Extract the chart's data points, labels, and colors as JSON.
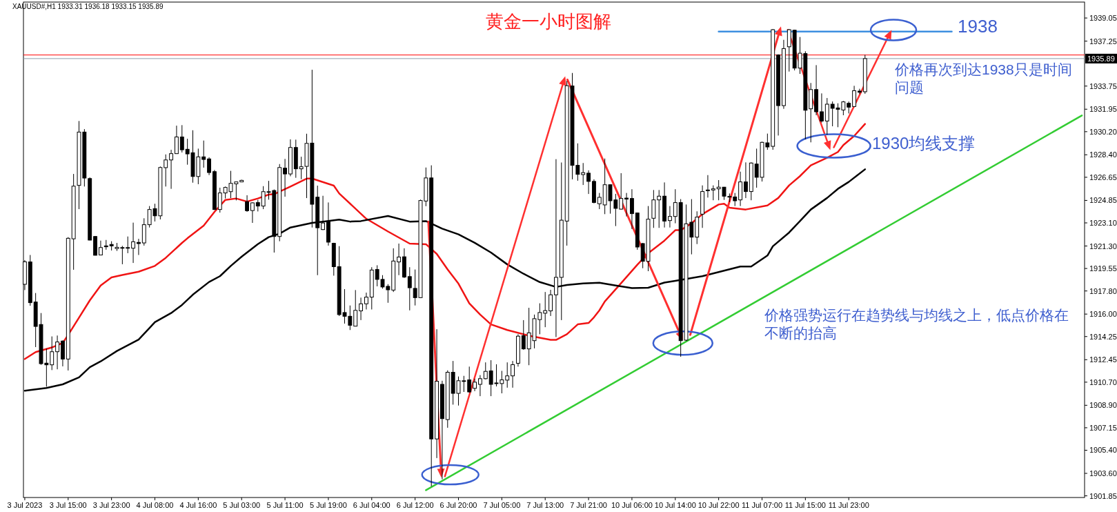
{
  "chart_data": {
    "type": "candlestick",
    "title": "黄金一小时图解",
    "subtitle": "XAUUSD#,H1 1933.31 1936.18 1933.15 1935.89",
    "annotations": [
      "1938",
      "价格再次到达1938只是时间问题",
      "1930均线支撑",
      "价格强势运行在趋势线与均线之上，低点价格在不断的抬高"
    ],
    "categories": [
      "3 Jul 2023",
      null,
      null,
      null,
      null,
      null,
      null,
      null,
      "3 Jul 15:00",
      null,
      null,
      null,
      null,
      null,
      null,
      null,
      "3 Jul 23:00",
      null,
      null,
      null,
      null,
      null,
      null,
      null,
      "4 Jul 08:00",
      null,
      null,
      null,
      null,
      null,
      null,
      null,
      "4 Jul 16:00",
      null,
      null,
      null,
      null,
      null,
      null,
      null,
      "5 Jul 03:00",
      null,
      null,
      null,
      null,
      null,
      null,
      null,
      "5 Jul 11:00",
      null,
      null,
      null,
      null,
      null,
      null,
      null,
      "5 Jul 19:00",
      null,
      null,
      null,
      null,
      null,
      null,
      null,
      "6 Jul 04:00",
      null,
      null,
      null,
      null,
      null,
      null,
      null,
      "6 Jul 12:00",
      null,
      null,
      null,
      null,
      null,
      null,
      null,
      "6 Jul 20:00",
      null,
      null,
      null,
      null,
      null,
      null,
      null,
      "7 Jul 05:00",
      null,
      null,
      null,
      null,
      null,
      null,
      null,
      "7 Jul 13:00",
      null,
      null,
      null,
      null,
      null,
      null,
      null,
      "7 Jul 21:00",
      null,
      null,
      null,
      null,
      null,
      null,
      null,
      "10 Jul 06:00",
      null,
      null,
      null,
      null,
      null,
      null,
      null,
      "10 Jul 14:00",
      null,
      null,
      null,
      null,
      null,
      null,
      null,
      "10 Jul 22:00",
      null,
      null,
      null,
      null,
      null,
      null,
      null,
      "11 Jul 07:00",
      null,
      null,
      null,
      null,
      null,
      null,
      null,
      "11 Jul 15:00",
      null,
      null,
      null,
      null,
      null,
      null,
      null,
      "11 Jul 23:00",
      null,
      null,
      null,
      null,
      null,
      null,
      null,
      null,
      null,
      null,
      null,
      null,
      null,
      null,
      null,
      null,
      null,
      null,
      null,
      null,
      null,
      null,
      null,
      null,
      null,
      null,
      null,
      null,
      null,
      null,
      null,
      null,
      null,
      null,
      null,
      null,
      null,
      null,
      null,
      null,
      null,
      null,
      null
    ],
    "ohlc": [
      [
        1918.32,
        1920.2,
        1917.87,
        1920.07
      ],
      [
        1920.06,
        1920.6,
        1916.65,
        1916.89
      ],
      [
        1916.94,
        1917.64,
        1913.43,
        1915.04
      ],
      [
        1915.19,
        1916.08,
        1912.05,
        1912.14
      ],
      [
        1912.18,
        1913.31,
        1910.35,
        1912.05
      ],
      [
        1912.05,
        1914.26,
        1911.64,
        1913.07
      ],
      [
        1913.07,
        1914.33,
        1911.7,
        1913.83
      ],
      [
        1913.9,
        1913.95,
        1911.93,
        1912.5
      ],
      [
        1912.5,
        1921.99,
        1911.61,
        1921.9
      ],
      [
        1921.86,
        1926.91,
        1919.45,
        1925.96
      ],
      [
        1926.02,
        1931.03,
        1924.17,
        1930.17
      ],
      [
        1930.17,
        1930.4,
        1925.93,
        1926.59
      ],
      [
        1926.55,
        1926.64,
        1921.74,
        1921.76
      ],
      [
        1922.04,
        1922.08,
        1920.56,
        1920.58
      ],
      [
        1920.6,
        1921.72,
        1920.58,
        1921.18
      ],
      [
        1921.31,
        1921.77,
        1921.01,
        1921.24
      ],
      [
        1921.42,
        1921.67,
        1920.95,
        1921.31
      ],
      [
        1921.1,
        1921.54,
        1920.92,
        1921.2
      ],
      [
        1921.17,
        1921.31,
        1919.88,
        1921.18
      ],
      [
        1921.15,
        1922.04,
        1920.74,
        1921.18
      ],
      [
        1921.13,
        1923.12,
        1919.98,
        1921.63
      ],
      [
        1921.58,
        1921.86,
        1920.6,
        1921.49
      ],
      [
        1921.54,
        1923.46,
        1921.33,
        1922.96
      ],
      [
        1922.96,
        1924.41,
        1922.74,
        1924.14
      ],
      [
        1924.21,
        1924.59,
        1923.21,
        1923.65
      ],
      [
        1923.65,
        1927.49,
        1923.37,
        1927.41
      ],
      [
        1927.4,
        1928.43,
        1925.93,
        1928.0
      ],
      [
        1928.0,
        1928.79,
        1925.75,
        1928.49
      ],
      [
        1928.49,
        1930.67,
        1928.47,
        1929.79
      ],
      [
        1929.79,
        1930.71,
        1928.58,
        1928.79
      ],
      [
        1928.83,
        1929.65,
        1927.63,
        1928.47
      ],
      [
        1928.56,
        1930.31,
        1926.23,
        1926.71
      ],
      [
        1926.71,
        1928.88,
        1926.11,
        1928.24
      ],
      [
        1928.24,
        1929.51,
        1927.4,
        1928.04
      ],
      [
        1928.08,
        1928.2,
        1926.82,
        1927.02
      ],
      [
        1927.09,
        1927.22,
        1924.1,
        1924.14
      ],
      [
        1924.14,
        1925.84,
        1923.9,
        1925.43
      ],
      [
        1925.43,
        1925.93,
        1925.0,
        1925.86
      ],
      [
        1925.53,
        1927.15,
        1925.03,
        1926.18
      ],
      [
        1926.14,
        1926.32,
        1924.85,
        1926.29
      ],
      [
        1926.29,
        1926.46,
        1926.28,
        1926.41
      ],
      [
        1924.75,
        1925.25,
        1923.96,
        1924.05
      ],
      [
        1924.06,
        1924.7,
        1923.1,
        1924.66
      ],
      [
        1924.68,
        1924.89,
        1923.99,
        1924.41
      ],
      [
        1924.41,
        1925.96,
        1924.17,
        1925.53
      ],
      [
        1925.5,
        1926.37,
        1924.91,
        1925.53
      ],
      [
        1925.62,
        1925.7,
        1920.79,
        1922.04
      ],
      [
        1922.04,
        1927.68,
        1921.67,
        1927.41
      ],
      [
        1927.36,
        1928.08,
        1925.14,
        1926.91
      ],
      [
        1926.91,
        1929.6,
        1926.73,
        1928.97
      ],
      [
        1928.97,
        1929.58,
        1926.61,
        1927.31
      ],
      [
        1927.31,
        1928.25,
        1926.5,
        1927.47
      ],
      [
        1927.5,
        1930.04,
        1925.03,
        1929.29
      ],
      [
        1929.31,
        1935.02,
        1922.74,
        1924.55
      ],
      [
        1925.1,
        1926.0,
        1919.03,
        1922.72
      ],
      [
        1922.58,
        1925.21,
        1922.54,
        1923.09
      ],
      [
        1923.2,
        1924.69,
        1921.33,
        1921.6
      ],
      [
        1921.51,
        1921.55,
        1918.99,
        1919.69
      ],
      [
        1919.69,
        1921.29,
        1915.85,
        1915.96
      ],
      [
        1916.12,
        1917.94,
        1915.26,
        1915.83
      ],
      [
        1915.83,
        1916.67,
        1914.76,
        1915.13
      ],
      [
        1915.06,
        1917.87,
        1915.04,
        1916.29
      ],
      [
        1916.25,
        1917.28,
        1915.53,
        1916.8
      ],
      [
        1916.8,
        1917.67,
        1916.36,
        1917.32
      ],
      [
        1917.32,
        1919.65,
        1916.36,
        1919.43
      ],
      [
        1919.47,
        1919.8,
        1918.16,
        1918.7
      ],
      [
        1918.7,
        1919.03,
        1917.98,
        1918.11
      ],
      [
        1918.16,
        1918.33,
        1916.88,
        1917.89
      ],
      [
        1917.87,
        1921.12,
        1917.72,
        1920.13
      ],
      [
        1920.06,
        1921.49,
        1919.03,
        1920.44
      ],
      [
        1920.46,
        1921.12,
        1918.81,
        1918.88
      ],
      [
        1918.92,
        1919.65,
        1916.29,
        1918.05
      ],
      [
        1918.0,
        1919.47,
        1916.67,
        1917.28
      ],
      [
        1917.28,
        1924.91,
        1917.25,
        1924.84
      ],
      [
        1924.8,
        1927.41,
        1924.4,
        1926.6
      ],
      [
        1926.6,
        1927.58,
        1902.59,
        1906.28
      ],
      [
        1906.28,
        1914.82,
        1904.79,
        1910.77
      ],
      [
        1910.53,
        1910.81,
        1903.14,
        1907.86
      ],
      [
        1907.79,
        1911.62,
        1907.15,
        1911.47
      ],
      [
        1911.47,
        1912.35,
        1908.95,
        1909.83
      ],
      [
        1909.83,
        1911.14,
        1908.88,
        1910.81
      ],
      [
        1910.77,
        1911.19,
        1909.94,
        1910.81
      ],
      [
        1910.88,
        1911.91,
        1909.87,
        1909.94
      ],
      [
        1910.22,
        1910.97,
        1910.0,
        1910.7
      ],
      [
        1910.53,
        1911.25,
        1909.61,
        1910.97
      ],
      [
        1910.97,
        1912.24,
        1910.92,
        1911.54
      ],
      [
        1911.58,
        1912.41,
        1909.61,
        1910.53
      ],
      [
        1910.59,
        1912.09,
        1910.37,
        1910.64
      ],
      [
        1910.59,
        1911.58,
        1909.83,
        1910.88
      ],
      [
        1910.86,
        1912.24,
        1910.27,
        1911.19
      ],
      [
        1911.19,
        1912.35,
        1910.27,
        1912.06
      ],
      [
        1912.17,
        1914.43,
        1911.91,
        1914.28
      ],
      [
        1914.32,
        1915.53,
        1913.22,
        1913.29
      ],
      [
        1913.29,
        1916.49,
        1912.02,
        1914.54
      ],
      [
        1913.93,
        1915.96,
        1913.33,
        1915.64
      ],
      [
        1915.57,
        1916.84,
        1914.43,
        1916.12
      ],
      [
        1916.07,
        1917.72,
        1914.98,
        1916.27
      ],
      [
        1916.25,
        1917.89,
        1915.85,
        1917.5
      ],
      [
        1917.5,
        1928.06,
        1914.21,
        1918.86
      ],
      [
        1918.86,
        1927.8,
        1915.53,
        1923.31
      ],
      [
        1923.24,
        1934.16,
        1921.33,
        1933.78
      ],
      [
        1933.76,
        1934.77,
        1926.49,
        1927.58
      ],
      [
        1927.58,
        1929.29,
        1926.38,
        1926.88
      ],
      [
        1926.86,
        1927.76,
        1926.05,
        1927.01
      ],
      [
        1926.97,
        1927.19,
        1925.35,
        1926.33
      ],
      [
        1926.33,
        1926.49,
        1924.62,
        1924.69
      ],
      [
        1924.59,
        1925.43,
        1924.17,
        1925.09
      ],
      [
        1924.5,
        1928.11,
        1923.78,
        1926.07
      ],
      [
        1926.07,
        1926.1,
        1923.82,
        1924.82
      ],
      [
        1924.89,
        1925.36,
        1922.85,
        1924.23
      ],
      [
        1924.17,
        1926.97,
        1924.14,
        1925.0
      ],
      [
        1925.03,
        1925.43,
        1923.6,
        1924.95
      ],
      [
        1925.0,
        1925.72,
        1922.62,
        1923.82
      ],
      [
        1923.87,
        1923.9,
        1921.01,
        1921.22
      ],
      [
        1921.49,
        1921.54,
        1919.57,
        1920.11
      ],
      [
        1920.11,
        1924.41,
        1919.34,
        1923.39
      ],
      [
        1923.46,
        1925.66,
        1922.71,
        1924.89
      ],
      [
        1924.89,
        1925.66,
        1922.71,
        1925.18
      ],
      [
        1925.18,
        1926.25,
        1922.74,
        1923.24
      ],
      [
        1923.28,
        1924.41,
        1922.74,
        1923.6
      ],
      [
        1923.6,
        1925.72,
        1923.07,
        1924.68
      ],
      [
        1924.68,
        1924.95,
        1912.68,
        1913.93
      ],
      [
        1913.97,
        1924.53,
        1913.9,
        1923.03
      ],
      [
        1923.15,
        1924.95,
        1920.65,
        1921.99
      ],
      [
        1921.99,
        1924.0,
        1921.45,
        1923.55
      ],
      [
        1923.78,
        1926.02,
        1922.71,
        1925.54
      ],
      [
        1925.63,
        1926.82,
        1925.07,
        1925.66
      ],
      [
        1925.66,
        1926.02,
        1924.86,
        1925.75
      ],
      [
        1925.75,
        1926.43,
        1924.86,
        1925.88
      ],
      [
        1925.88,
        1925.9,
        1924.89,
        1925.18
      ],
      [
        1925.12,
        1925.39,
        1924.71,
        1925.16
      ],
      [
        1925.12,
        1925.43,
        1924.41,
        1924.82
      ],
      [
        1924.89,
        1927.09,
        1924.41,
        1926.29
      ],
      [
        1926.29,
        1927.81,
        1925.03,
        1925.54
      ],
      [
        1925.54,
        1927.81,
        1924.86,
        1927.76
      ],
      [
        1927.68,
        1928.88,
        1925.84,
        1926.65
      ],
      [
        1926.65,
        1929.42,
        1926.32,
        1929.37
      ],
      [
        1929.33,
        1930.05,
        1928.79,
        1929.01
      ],
      [
        1929.06,
        1938.19,
        1928.79,
        1938.14
      ],
      [
        1936.17,
        1936.22,
        1929.9,
        1932.23
      ],
      [
        1932.23,
        1937.35,
        1931.98,
        1936.67
      ],
      [
        1936.81,
        1938.19,
        1934.88,
        1938.14
      ],
      [
        1938.1,
        1938.14,
        1934.97,
        1935.15
      ],
      [
        1935.15,
        1937.57,
        1934.7,
        1936.31
      ],
      [
        1936.28,
        1936.46,
        1929.6,
        1931.87
      ],
      [
        1931.98,
        1933.99,
        1929.37,
        1933.48
      ],
      [
        1933.48,
        1935.38,
        1931.48,
        1931.75
      ],
      [
        1931.75,
        1933.18,
        1930.91,
        1931.03
      ],
      [
        1931.03,
        1932.82,
        1929.96,
        1932.34
      ],
      [
        1932.34,
        1932.55,
        1930.62,
        1932.02
      ],
      [
        1932.05,
        1932.41,
        1930.55,
        1931.94
      ],
      [
        1931.89,
        1932.59,
        1931.48,
        1932.52
      ],
      [
        1932.41,
        1932.55,
        1931.62,
        1932.11
      ],
      [
        1932.16,
        1933.77,
        1932.11,
        1933.39
      ],
      [
        1933.36,
        1933.54,
        1933.13,
        1933.27
      ],
      [
        1933.31,
        1936.18,
        1933.15,
        1935.89
      ],
      null,
      null,
      null,
      null,
      null,
      null,
      null,
      null,
      null,
      null,
      null,
      null,
      null,
      null,
      null,
      null,
      null,
      null,
      null,
      null,
      null,
      null,
      null,
      null,
      null,
      null,
      null,
      null,
      null,
      null,
      null,
      null,
      null,
      null,
      null,
      null,
      null,
      null,
      null,
      null
    ],
    "series": [
      {
        "type": "line",
        "color": "#f01414",
        "values": [
          1912.5,
          null,
          1913.04,
          null,
          null,
          1913.4,
          null,
          1913.76,
          1914.38,
          null,
          1915.72,
          null,
          1917.07,
          null,
          1918.23,
          null,
          1918.86,
          null,
          1919.04,
          null,
          null,
          1919.3,
          null,
          null,
          1919.75,
          null,
          1920.38,
          null,
          null,
          1921.54,
          1921.9,
          null,
          null,
          1922.89,
          null,
          1923.96,
          null,
          1924.89,
          null,
          1925.0,
          null,
          1924.76,
          null,
          1925.0,
          null,
          1925.3,
          1925.34,
          null,
          null,
          1925.93,
          null,
          null,
          1926.55,
          1926.55,
          null,
          null,
          null,
          1926.0,
          1925.39,
          null,
          null,
          null,
          null,
          1923.42,
          null,
          null,
          null,
          1922.43,
          null,
          null,
          null,
          1921.49,
          null,
          null,
          1921.44,
          null,
          1920.68,
          null,
          1919.47,
          null,
          1918.37,
          null,
          1916.84,
          null,
          1915.96,
          null,
          1915.2,
          null,
          null,
          1914.76,
          null,
          null,
          null,
          1914.32,
          null,
          null,
          null,
          1913.99,
          1913.99,
          null,
          1914.43,
          null,
          1915.2,
          null,
          1915.31,
          1915.75,
          1916.29,
          1916.98,
          null,
          null,
          1918.41,
          null,
          null,
          1919.84,
          null,
          1920.74,
          null,
          null,
          1921.72,
          null,
          1922.53,
          1922.53,
          null,
          1923.07,
          null,
          1923.78,
          null,
          null,
          1924.53,
          1924.59,
          1924.28,
          null,
          null,
          1924.14,
          null,
          null,
          null,
          1924.46,
          null,
          1925.04,
          null,
          1926.02,
          null,
          1926.74,
          null,
          1927.58,
          null,
          null,
          1928.17,
          null,
          1928.62,
          1929.16,
          null,
          1929.87,
          null,
          1930.8,
          null,
          null,
          null,
          null,
          null,
          null,
          null,
          null,
          null,
          null,
          null,
          null,
          null,
          null,
          null,
          null,
          null,
          null,
          null,
          null,
          null,
          null,
          null,
          null,
          null,
          null,
          null,
          null,
          null,
          null,
          null,
          null,
          null,
          null,
          null,
          null,
          null,
          null,
          null,
          null
        ]
      },
      {
        "type": "line",
        "color": "#000000",
        "values": [
          1910.03,
          null,
          null,
          null,
          1910.25,
          null,
          null,
          1910.53,
          null,
          null,
          1911.07,
          null,
          1911.87,
          null,
          1912.32,
          null,
          null,
          1913.13,
          null,
          null,
          null,
          1914.02,
          null,
          1914.92,
          1915.37,
          null,
          null,
          1916.08,
          null,
          1916.71,
          null,
          1917.51,
          null,
          null,
          1918.5,
          null,
          1918.95,
          null,
          1919.75,
          null,
          1920.47,
          null,
          null,
          1921.45,
          null,
          1921.99,
          null,
          1922.26,
          null,
          1922.74,
          null,
          null,
          null,
          1923.1,
          null,
          1923.2,
          null,
          null,
          1923.35,
          null,
          1923.2,
          null,
          1923.24,
          null,
          null,
          null,
          null,
          1923.64,
          null,
          null,
          null,
          1923.2,
          null,
          null,
          1923.24,
          null,
          null,
          1922.65,
          null,
          null,
          1922.21,
          null,
          null,
          1921.55,
          null,
          null,
          1920.79,
          null,
          null,
          1919.87,
          null,
          null,
          1919.14,
          null,
          null,
          1918.49,
          null,
          null,
          1918.11,
          null,
          1918.27,
          null,
          null,
          1918.38,
          null,
          null,
          1918.44,
          null,
          null,
          1918.23,
          null,
          null,
          1918.02,
          null,
          null,
          1918.05,
          null,
          null,
          1918.45,
          null,
          1918.59,
          null,
          null,
          null,
          null,
          1918.95,
          null,
          null,
          null,
          null,
          1919.49,
          null,
          1919.7,
          null,
          1919.7,
          null,
          null,
          1920.56,
          1921.28,
          null,
          null,
          1922.35,
          null,
          1923.24,
          null,
          1924.14,
          null,
          null,
          1925.04,
          null,
          1925.75,
          null,
          1926.29,
          null,
          null,
          1927.27,
          null,
          null,
          null,
          null,
          null,
          null,
          null,
          null,
          null,
          null,
          null,
          null,
          null,
          null,
          null,
          null,
          null,
          null,
          null,
          null,
          null,
          null,
          null,
          null,
          null,
          null,
          null,
          null,
          null,
          null,
          null,
          null,
          null,
          null,
          null,
          null,
          null,
          null,
          null,
          null
        ]
      },
      {
        "type": "line",
        "color": "#33cc33",
        "values": [
          null,
          null,
          null,
          null,
          null,
          null,
          null,
          null,
          null,
          null,
          null,
          null,
          null,
          null,
          null,
          null,
          null,
          null,
          null,
          null,
          null,
          null,
          null,
          null,
          null,
          null,
          null,
          null,
          null,
          null,
          null,
          null,
          null,
          null,
          null,
          null,
          null,
          null,
          null,
          null,
          null,
          null,
          null,
          null,
          null,
          null,
          null,
          null,
          null,
          null,
          null,
          null,
          null,
          null,
          null,
          null,
          null,
          null,
          null,
          null,
          null,
          null,
          null,
          null,
          null,
          null,
          null,
          null,
          null,
          null,
          null,
          null,
          null,
          null,
          1902.29,
          null,
          null,
          null,
          null,
          null,
          null,
          null,
          null,
          null,
          null,
          null,
          null,
          null,
          null,
          null,
          null,
          null,
          null,
          null,
          null,
          null,
          null,
          null,
          null,
          null,
          null,
          null,
          null,
          null,
          null,
          null,
          null,
          null,
          null,
          null,
          null,
          null,
          null,
          null,
          null,
          null,
          null,
          null,
          null,
          null,
          null,
          null,
          null,
          null,
          null,
          null,
          null,
          null,
          null,
          null,
          null,
          null,
          null,
          null,
          null,
          null,
          null,
          null,
          null,
          null,
          null,
          null,
          null,
          null,
          null,
          null,
          null,
          null,
          null,
          null,
          null,
          null,
          null,
          null,
          null,
          null,
          null,
          null,
          null,
          null,
          null,
          null,
          null,
          null,
          null,
          null,
          null,
          null,
          null,
          null,
          null,
          null,
          null,
          null,
          null,
          null,
          null,
          null,
          null,
          null,
          null,
          null,
          null,
          null,
          null,
          null,
          null,
          null,
          null,
          null,
          null,
          null,
          null,
          null,
          null,
          1931.46
        ]
      },
      {
        "type": "line",
        "color": "#3d8fe0",
        "values": [
          null,
          null,
          null,
          null,
          null,
          null,
          null,
          null,
          null,
          null,
          null,
          null,
          null,
          null,
          null,
          null,
          null,
          null,
          null,
          null,
          null,
          null,
          null,
          null,
          null,
          null,
          null,
          null,
          null,
          null,
          null,
          null,
          null,
          null,
          null,
          null,
          null,
          null,
          null,
          null,
          null,
          null,
          null,
          null,
          null,
          null,
          null,
          null,
          null,
          null,
          null,
          null,
          null,
          null,
          null,
          null,
          null,
          null,
          null,
          null,
          null,
          null,
          null,
          null,
          null,
          null,
          null,
          null,
          null,
          null,
          null,
          null,
          null,
          null,
          null,
          null,
          null,
          null,
          null,
          null,
          null,
          null,
          null,
          null,
          null,
          null,
          null,
          null,
          null,
          null,
          null,
          null,
          null,
          null,
          null,
          null,
          null,
          null,
          null,
          null,
          null,
          null,
          null,
          null,
          null,
          null,
          null,
          null,
          null,
          null,
          null,
          null,
          null,
          null,
          null,
          null,
          null,
          null,
          null,
          null,
          null,
          null,
          null,
          null,
          null,
          null,
          null,
          null,
          1938,
          null,
          null,
          null,
          null,
          null,
          null,
          null,
          null,
          null,
          null,
          null,
          null,
          null,
          null,
          null,
          null,
          null,
          null,
          null,
          null,
          null,
          null,
          null,
          null,
          null,
          null,
          null,
          null,
          null,
          null,
          null,
          null,
          null,
          null,
          null,
          null,
          null,
          null,
          null,
          null,
          null,
          null,
          1938,
          null,
          null,
          null,
          null,
          null,
          null,
          null,
          null,
          null,
          null,
          null,
          null,
          null,
          null,
          null,
          null,
          null,
          null,
          null,
          null,
          null,
          null,
          null,
          null
        ]
      }
    ],
    "ylim": [
      1901.72,
      1940.29
    ],
    "yticks": [
      1939.05,
      1937.25,
      1933.75,
      1931.95,
      {
        "value": 1930.2,
        "label": "1930.20"
      },
      {
        "value": 1928.4,
        "label": "1928.40"
      },
      1926.65,
      1924.85,
      {
        "value": 1923.1,
        "label": "1923.10"
      },
      {
        "value": 1921.3,
        "label": "1921.30"
      },
      1919.55,
      {
        "value": 1917.8,
        "label": "1917.80"
      },
      {
        "value": 1916,
        "label": "1916.00"
      },
      1914.25,
      1912.45,
      {
        "value": 1910.7,
        "label": "1910.70"
      },
      {
        "value": 1908.9,
        "label": "1908.90"
      },
      1907.15,
      {
        "value": 1905.4,
        "label": "1905.40"
      },
      {
        "value": 1903.6,
        "label": "1903.60"
      },
      1901.85
    ],
    "ref_lines": [
      {
        "axis": "y",
        "value": 1936.17,
        "color": "#ff0000"
      },
      {
        "axis": "y",
        "value": 1935.89,
        "label": "1935.89",
        "color": "#8a9aaa"
      }
    ]
  }
}
